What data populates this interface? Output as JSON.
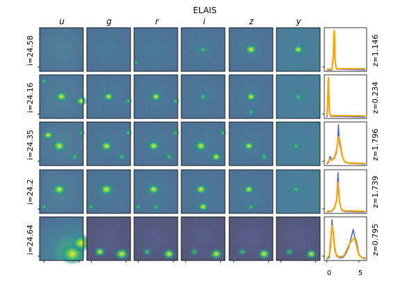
{
  "title": "ELAIS",
  "bands": [
    "u",
    "g",
    "r",
    "i",
    "z",
    "y"
  ],
  "rows": [
    {
      "mag_label": "i=24.58",
      "z_label": "z=1.146"
    },
    {
      "mag_label": "i=24.16",
      "z_label": "z=0.234"
    },
    {
      "mag_label": "i=24.35",
      "z_label": "z=1.796"
    },
    {
      "mag_label": "i=24.2",
      "z_label": "z=1.739"
    },
    {
      "mag_label": "i=24.64",
      "z_label": "z=0.795"
    }
  ],
  "pdf_axis": {
    "tick_labels": [
      "0",
      "5"
    ]
  },
  "colors": {
    "pdf_a": "#4169e1",
    "pdf_b": "#ffa500"
  },
  "chart_data": {
    "type": "line",
    "title": "ELAIS",
    "xlabel": "",
    "ylabel": "",
    "xlim": [
      -0.4,
      6.2
    ],
    "x_ticks": [
      0,
      5
    ],
    "grid": false,
    "panels": [
      {
        "z_label": "z=1.146",
        "series": [
          {
            "color": "#4169e1",
            "x": [
              0,
              0.8,
              1.0,
              1.1,
              1.15,
              1.2,
              1.3,
              1.5,
              6
            ],
            "values": [
              0,
              0,
              0.3,
              0.9,
              1.0,
              0.85,
              0.2,
              0.02,
              0
            ]
          },
          {
            "color": "#ffa500",
            "x": [
              0,
              0.8,
              1.0,
              1.1,
              1.15,
              1.2,
              1.3,
              1.5,
              6
            ],
            "values": [
              0.02,
              0.02,
              0.35,
              0.92,
              1.0,
              0.8,
              0.18,
              0.03,
              0.03
            ]
          }
        ]
      },
      {
        "z_label": "z=0.234",
        "series": [
          {
            "color": "#4169e1",
            "x": [
              0,
              0.1,
              0.2,
              0.25,
              0.3,
              0.4,
              0.6,
              6
            ],
            "values": [
              0,
              0.2,
              0.85,
              1.0,
              0.75,
              0.1,
              0.02,
              0
            ]
          },
          {
            "color": "#ffa500",
            "x": [
              0,
              0.1,
              0.2,
              0.25,
              0.3,
              0.4,
              0.6,
              6
            ],
            "values": [
              0.04,
              0.3,
              0.9,
              1.0,
              0.7,
              0.1,
              0.04,
              0.03
            ]
          }
        ]
      },
      {
        "z_label": "z=1.796",
        "series": [
          {
            "color": "#4169e1",
            "x": [
              0,
              0.3,
              0.5,
              0.8,
              1.2,
              1.5,
              1.7,
              1.8,
              1.9,
              2.0,
              2.2,
              2.4,
              2.8,
              3.5,
              6
            ],
            "values": [
              0,
              0.05,
              0.2,
              0.1,
              0.15,
              0.3,
              0.6,
              1.0,
              0.7,
              0.5,
              0.35,
              0.2,
              0.05,
              0.02,
              0
            ]
          },
          {
            "color": "#ffa500",
            "x": [
              0,
              0.3,
              0.5,
              0.8,
              1.2,
              1.5,
              1.7,
              1.8,
              1.9,
              2.0,
              2.2,
              2.4,
              2.8,
              3.5,
              6
            ],
            "values": [
              0.02,
              0.08,
              0.12,
              0.1,
              0.18,
              0.35,
              0.55,
              0.7,
              0.6,
              0.62,
              0.4,
              0.2,
              0.06,
              0.03,
              0.02
            ]
          }
        ]
      },
      {
        "z_label": "z=1.739",
        "series": [
          {
            "color": "#4169e1",
            "x": [
              0,
              0.8,
              1.2,
              1.5,
              1.65,
              1.75,
              1.85,
              2.0,
              2.3,
              2.8,
              6
            ],
            "values": [
              0,
              0.02,
              0.1,
              0.3,
              0.7,
              1.0,
              0.6,
              0.25,
              0.05,
              0.01,
              0
            ]
          },
          {
            "color": "#ffa500",
            "x": [
              0,
              0.8,
              1.2,
              1.5,
              1.65,
              1.75,
              1.85,
              2.0,
              2.3,
              2.8,
              6
            ],
            "values": [
              0.02,
              0.03,
              0.12,
              0.28,
              0.55,
              0.75,
              0.5,
              0.22,
              0.06,
              0.03,
              0.02
            ]
          }
        ]
      },
      {
        "z_label": "z=0.795",
        "series": [
          {
            "color": "#4169e1",
            "x": [
              0,
              0.4,
              0.6,
              0.8,
              1.0,
              1.2,
              1.5,
              2.0,
              2.6,
              3.0,
              3.4,
              3.8,
              4.1,
              4.3,
              4.6,
              5.0,
              5.5,
              6
            ],
            "values": [
              0,
              0.05,
              0.35,
              1.0,
              0.6,
              0.25,
              0.08,
              0.03,
              0.05,
              0.15,
              0.3,
              0.55,
              0.75,
              0.6,
              0.45,
              0.12,
              0.03,
              0
            ]
          },
          {
            "color": "#ffa500",
            "x": [
              0,
              0.4,
              0.6,
              0.8,
              1.0,
              1.2,
              1.5,
              2.0,
              2.6,
              3.0,
              3.4,
              3.8,
              4.1,
              4.3,
              4.6,
              5.0,
              5.5,
              6
            ],
            "values": [
              0.02,
              0.1,
              0.5,
              0.85,
              0.7,
              0.3,
              0.1,
              0.05,
              0.08,
              0.2,
              0.35,
              0.45,
              0.5,
              0.55,
              0.35,
              0.1,
              0.04,
              0.02
            ]
          }
        ]
      }
    ]
  }
}
